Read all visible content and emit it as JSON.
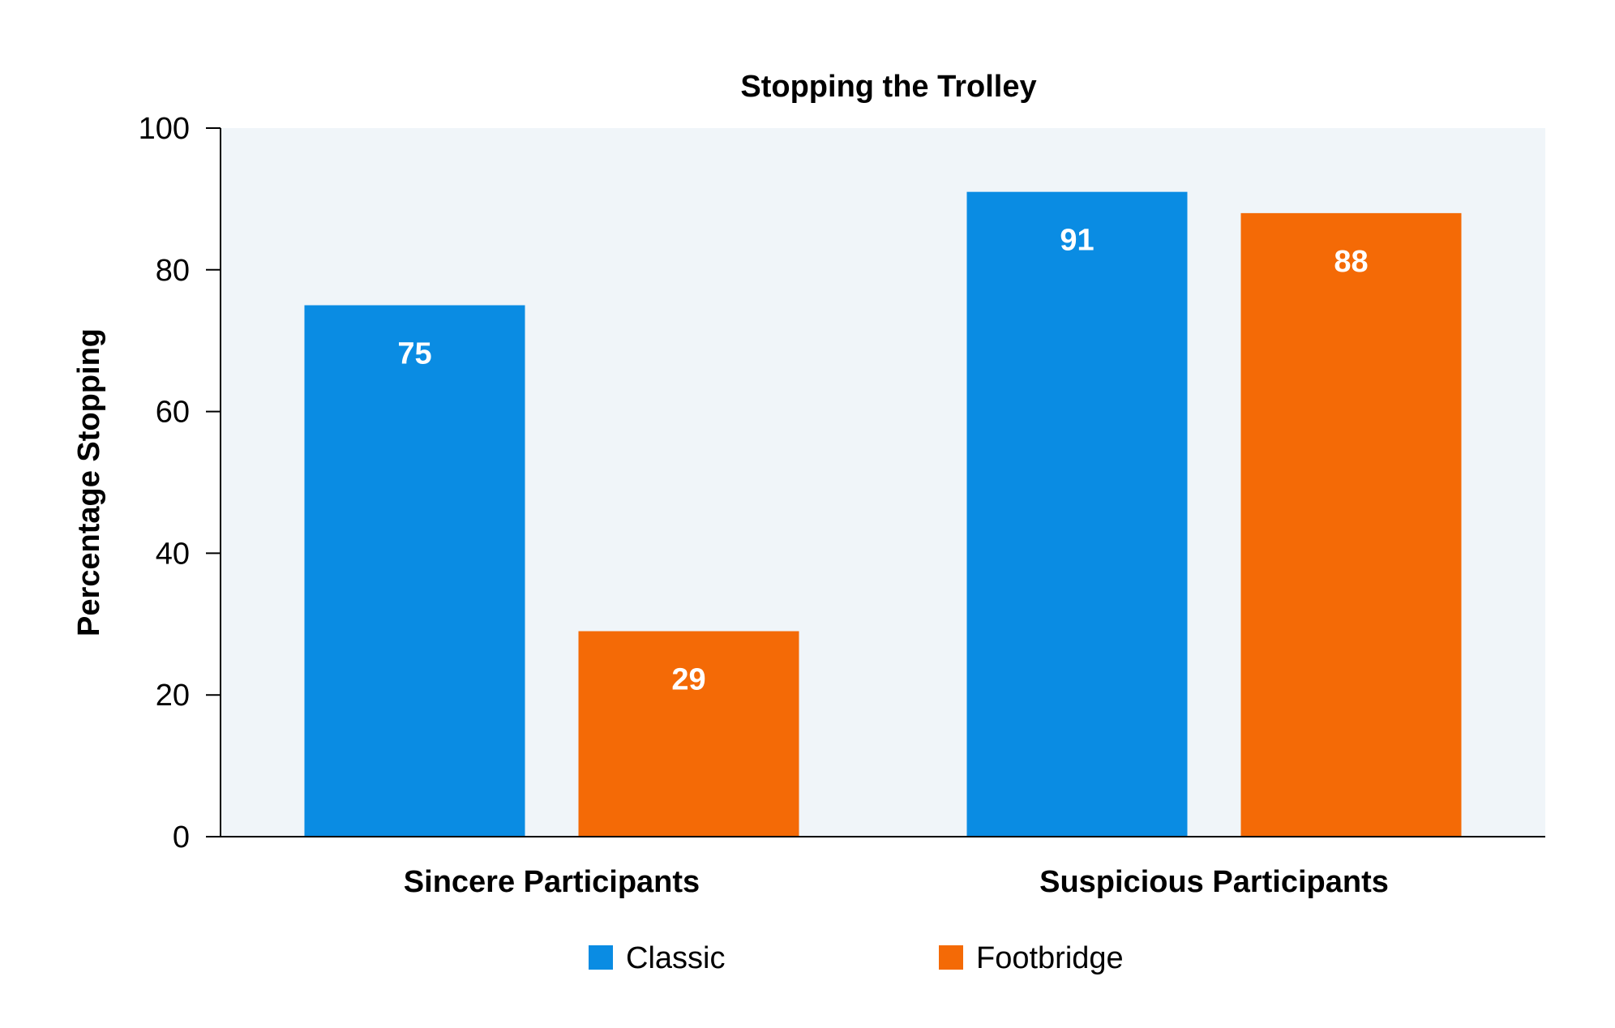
{
  "chart_data": {
    "type": "bar",
    "title": "Stopping the Trolley",
    "xlabel": "",
    "ylabel": "Percentage Stopping",
    "categories": [
      "Sincere Participants",
      "Suspicious Participants"
    ],
    "series": [
      {
        "name": "Classic",
        "values": [
          75,
          91
        ],
        "color": "#0a8ce3"
      },
      {
        "name": "Footbridge",
        "values": [
          29,
          88
        ],
        "color": "#f46a06"
      }
    ],
    "ylim": [
      0,
      100
    ],
    "yticks": [
      0,
      20,
      40,
      60,
      80,
      100
    ],
    "grid": false,
    "plot_background": "#f0f5f9",
    "legend": {
      "position": "bottom-center"
    },
    "data_labels": true
  }
}
